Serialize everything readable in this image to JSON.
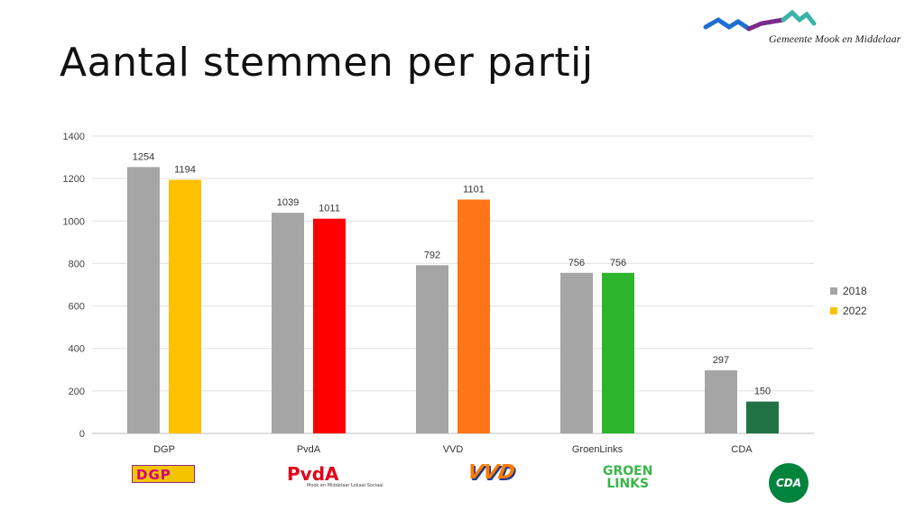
{
  "page": {
    "title": "Aantal stemmen per partij"
  },
  "brand": {
    "text": "Gemeente Mook en Middelaar"
  },
  "legend": [
    {
      "label": "2018",
      "color": "#a5a5a5"
    },
    {
      "label": "2022",
      "color": "#ffc000"
    }
  ],
  "logos": {
    "dgp": "DGP",
    "pvda": "PvdA",
    "pvda_sub": "Mook en Middelaar Lokaal Sociaal",
    "vvd": "VVD",
    "groenlinks_1": "GROEN",
    "groenlinks_2": "LINKS",
    "cda": "CDA"
  },
  "chart_data": {
    "type": "bar",
    "title": "",
    "xlabel": "",
    "ylabel": "",
    "ylim": [
      0,
      1400
    ],
    "yticks": [
      0,
      200,
      400,
      600,
      800,
      1000,
      1200,
      1400
    ],
    "grid": true,
    "legend_position": "right",
    "categories": [
      "DGP",
      "PvdA",
      "VVD",
      "GroenLinks",
      "CDA"
    ],
    "series": [
      {
        "name": "2018",
        "values": [
          1254,
          1039,
          792,
          756,
          297
        ],
        "colors": [
          "#a5a5a5",
          "#a5a5a5",
          "#a5a5a5",
          "#a5a5a5",
          "#a5a5a5"
        ]
      },
      {
        "name": "2022",
        "values": [
          1194,
          1011,
          1101,
          756,
          150
        ],
        "colors": [
          "#ffc000",
          "#ff0000",
          "#ff7518",
          "#2db52d",
          "#217346"
        ]
      }
    ]
  }
}
